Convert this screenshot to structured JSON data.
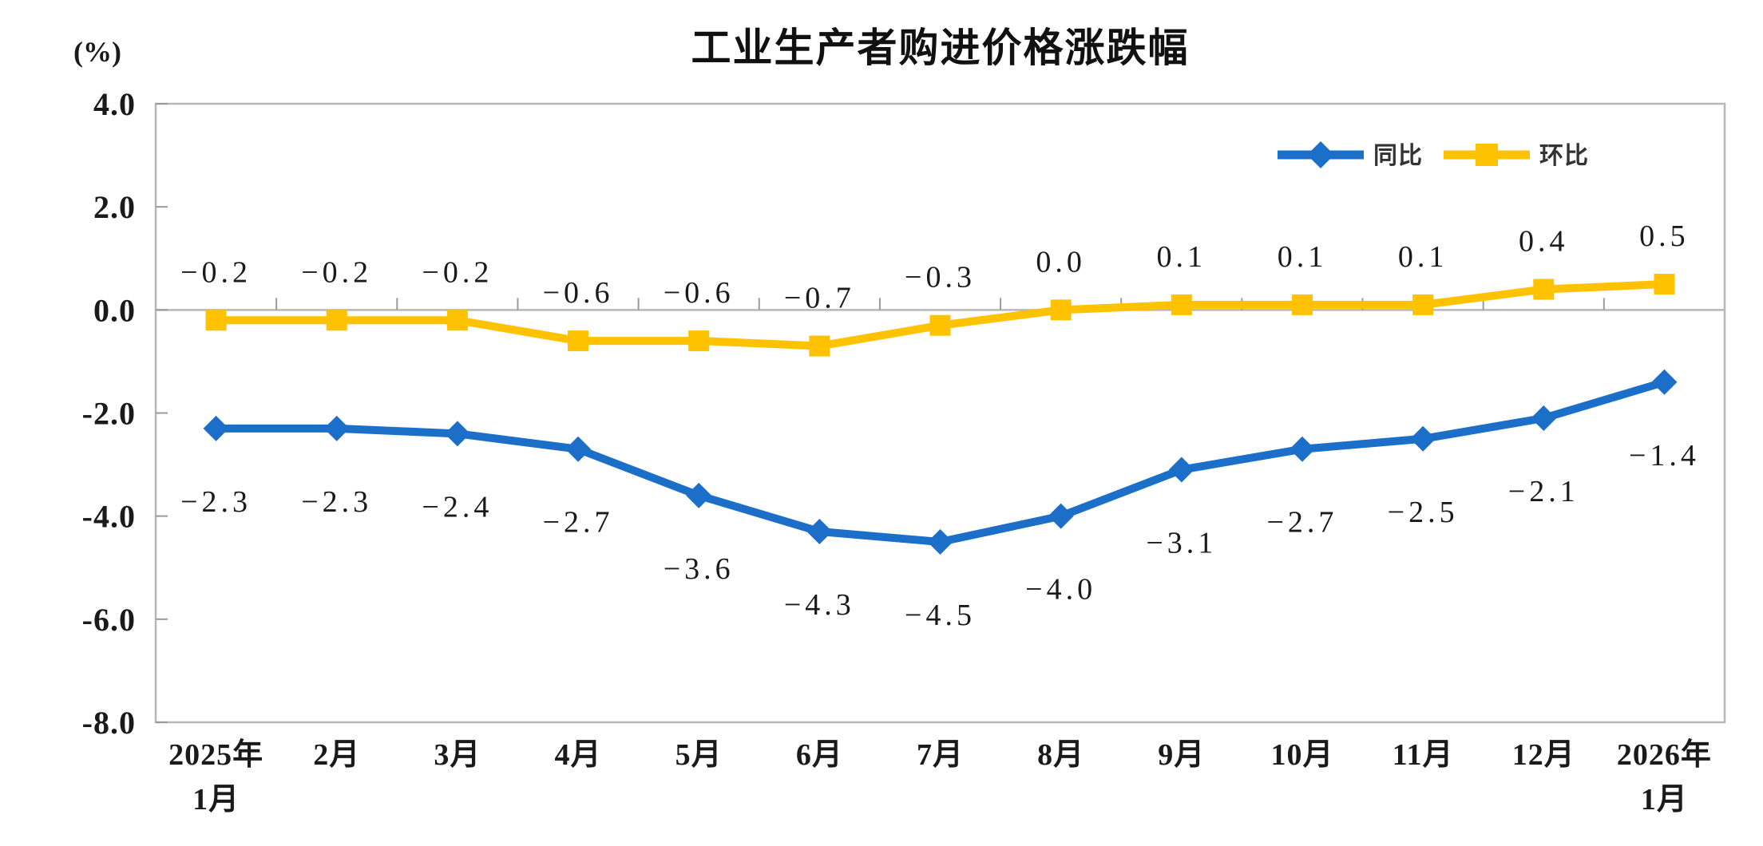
{
  "chart_data": {
    "type": "line",
    "title": "工业生产者购进价格涨跌幅",
    "ylabel": "(%)",
    "xlabel": "",
    "categories": [
      [
        "2025年",
        "1月"
      ],
      [
        "2月"
      ],
      [
        "3月"
      ],
      [
        "4月"
      ],
      [
        "5月"
      ],
      [
        "6月"
      ],
      [
        "7月"
      ],
      [
        "8月"
      ],
      [
        "9月"
      ],
      [
        "10月"
      ],
      [
        "11月"
      ],
      [
        "12月"
      ],
      [
        "2026年",
        "1月"
      ]
    ],
    "series": [
      {
        "name": "同比",
        "color": "#1B6FC8",
        "marker": "diamond",
        "values": [
          -2.3,
          -2.3,
          -2.4,
          -2.7,
          -3.6,
          -4.3,
          -4.5,
          -4.0,
          -3.1,
          -2.7,
          -2.5,
          -2.1,
          -1.4
        ],
        "labels": [
          "-2.3",
          "-2.3",
          "-2.4",
          "-2.7",
          "-3.6",
          "-4.3",
          "-4.5",
          "-4.0",
          "-3.1",
          "-2.7",
          "-2.5",
          "-2.1",
          "-1.4"
        ]
      },
      {
        "name": "环比",
        "color": "#FFC200",
        "marker": "square",
        "values": [
          -0.2,
          -0.2,
          -0.2,
          -0.6,
          -0.6,
          -0.7,
          -0.3,
          0.0,
          0.1,
          0.1,
          0.1,
          0.4,
          0.5
        ],
        "labels": [
          "-0.2",
          "-0.2",
          "-0.2",
          "-0.6",
          "-0.6",
          "-0.7",
          "-0.3",
          "0.0",
          "0.1",
          "0.1",
          "0.1",
          "0.4",
          "0.5"
        ]
      }
    ],
    "ylim": [
      -8.0,
      4.0
    ],
    "ytick_labels": [
      "4.0",
      "2.0",
      "0.0",
      "-2.0",
      "-4.0",
      "-6.0",
      "-8.0"
    ],
    "legend_position": "top-right",
    "grid": false,
    "axis_color": "#b7b7b7",
    "text_color": "#1a1a1a",
    "background": "#ffffff"
  }
}
